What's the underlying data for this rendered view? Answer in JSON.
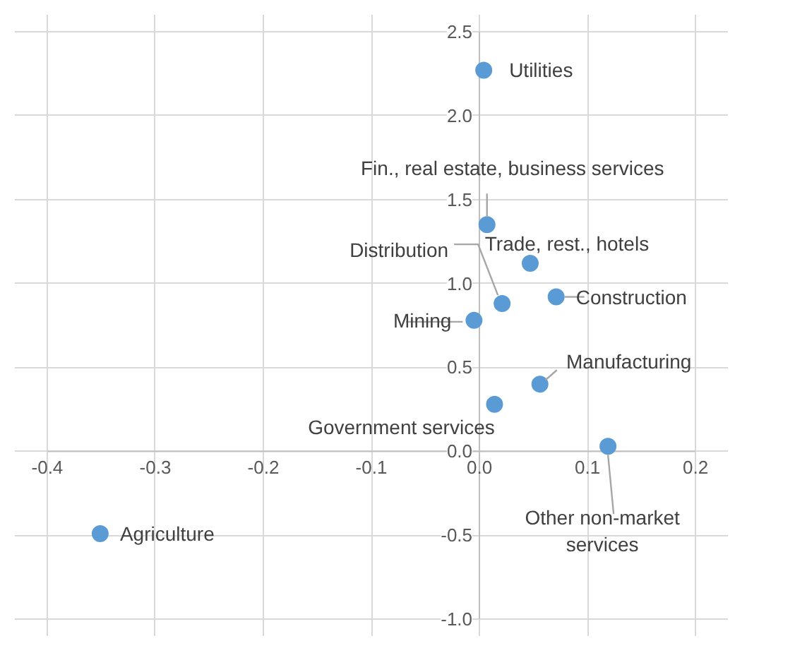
{
  "chart_data": {
    "type": "scatter",
    "x": [
      0.004,
      0.007,
      0.047,
      0.071,
      0.021,
      -0.005,
      0.056,
      0.014,
      0.119,
      -0.351
    ],
    "values": [
      2.27,
      1.35,
      1.12,
      0.92,
      0.88,
      0.78,
      0.4,
      0.28,
      0.03,
      -0.49
    ],
    "color": "#5b9bd5",
    "marker": "circle",
    "xlim": [
      -0.4,
      0.2
    ],
    "xticks": [
      -0.4,
      -0.3,
      -0.2,
      -0.1,
      {
        "value": 0,
        "label": "0.0"
      },
      0.1,
      0.2
    ],
    "ylim": [
      -1.0,
      2.5
    ],
    "yticks": [
      {
        "value": -1,
        "label": "-1.0"
      },
      -0.5,
      {
        "value": 0,
        "label": "0.0"
      },
      0.5,
      {
        "value": 1,
        "label": "1.0"
      },
      1.5,
      {
        "value": 2,
        "label": "2.0"
      },
      2.5
    ],
    "grid": true,
    "annotations": [
      {
        "text": "Utilities",
        "x": 0.004,
        "y": 2.27
      },
      {
        "text": "Fin., real estate, business services",
        "x": 0.007,
        "y": 1.35
      },
      {
        "text": "Trade, rest., hotels",
        "x": 0.047,
        "y": 1.12
      },
      {
        "text": "Construction",
        "x": 0.071,
        "y": 0.92
      },
      {
        "text": "Distribution",
        "x": 0.021,
        "y": 0.88
      },
      {
        "text": "Mining",
        "x": -0.005,
        "y": 0.78
      },
      {
        "text": "Manufacturing",
        "x": 0.056,
        "y": 0.4
      },
      {
        "text": "Government services",
        "x": 0.014,
        "y": 0.28
      },
      {
        "text": "Other non-market\nservices",
        "x": 0.119,
        "y": 0.03
      },
      {
        "text": "Agriculture",
        "x": -0.351,
        "y": -0.49
      }
    ]
  }
}
